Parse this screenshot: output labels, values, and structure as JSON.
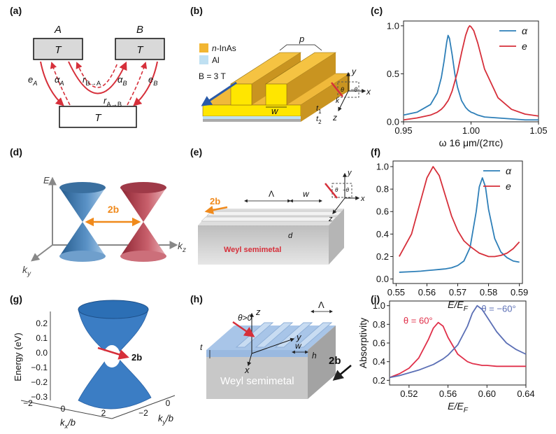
{
  "panel_labels": [
    "(a)",
    "(b)",
    "(c)",
    "(d)",
    "(e)",
    "(f)",
    "(g)",
    "(h)",
    "(i)"
  ],
  "diagram_a": {
    "reservoirs": [
      "A",
      "B"
    ],
    "boxes": [
      "T",
      "T",
      "T"
    ],
    "e_A": [
      "e",
      "A"
    ],
    "alpha_A": [
      "α",
      "A"
    ],
    "r_BA": [
      "r",
      "B→A"
    ],
    "r_AB": [
      "r",
      "A→B"
    ],
    "alpha_B": [
      "α",
      "B"
    ],
    "e_B": [
      "e",
      "B"
    ]
  },
  "diagram_b": {
    "legend": [
      [
        "n",
        "-InAs"
      ],
      "Al"
    ],
    "field": "B = 3 T",
    "p": "p",
    "w": "w",
    "t1": [
      "t",
      "1"
    ],
    "t2": [
      "t",
      "2"
    ],
    "axes": [
      "x",
      "y",
      "z"
    ],
    "theta": "θ",
    "neg_theta": "−θ",
    "k": "k"
  },
  "diagram_d": {
    "energy": "E",
    "ky": [
      "k",
      "y"
    ],
    "kz": [
      "k",
      "z"
    ],
    "separation": [
      "2",
      "b"
    ]
  },
  "diagram_e": {
    "separation": [
      "2",
      "b"
    ],
    "period": "Λ",
    "width": "w",
    "depth": "d",
    "material": "Weyl semimetal",
    "axes": [
      "x",
      "y",
      "z"
    ],
    "theta": "θ",
    "neg_theta": "−θ"
  },
  "diagram_g": {
    "ylabel": "Energy (eV)",
    "yticks": [
      "0.2",
      "0.1",
      "0.0",
      "−0.1",
      "−0.2",
      "−0.3"
    ],
    "kx_ticks": [
      "−2",
      "0",
      "2"
    ],
    "ky_ticks": [
      "−2",
      "0"
    ],
    "kx": [
      "k",
      "x",
      "/b"
    ],
    "ky": [
      "k",
      "y",
      "/b"
    ],
    "separation": [
      "2",
      "b"
    ]
  },
  "diagram_h": {
    "z": "z",
    "x": "x",
    "y": "y",
    "theta": "θ>0",
    "period": "Λ",
    "width": "w",
    "height": "h",
    "thickness": "t",
    "material": "Weyl semimetal",
    "separation": [
      "2",
      "b"
    ]
  },
  "chart_data": [
    {
      "type": "line",
      "xlabel": "ω 16 μm/(2πc)",
      "legend": "upper right",
      "xlim": [
        0.95,
        1.05
      ],
      "xticks": [
        0.95,
        {
          "value": 1,
          "label": "1.00"
        },
        1.05
      ],
      "ylim": [
        0,
        1.05
      ],
      "yticks": [
        {
          "value": 0,
          "label": "0.0"
        },
        0.5,
        {
          "value": 1,
          "label": "1.0"
        }
      ],
      "x": [
        0.95,
        0.96,
        0.97,
        0.975,
        0.978,
        0.98,
        0.982,
        0.983,
        0.984,
        0.986,
        0.988,
        0.99,
        0.993,
        0.996,
        0.998,
        0.999,
        1.0,
        1.002,
        1.005,
        1.01,
        1.02,
        1.03,
        1.04,
        1.05
      ],
      "series": [
        {
          "name": "α",
          "color": "#2e7fb8",
          "values": [
            0.07,
            0.1,
            0.18,
            0.3,
            0.46,
            0.63,
            0.83,
            0.9,
            0.87,
            0.7,
            0.5,
            0.36,
            0.22,
            0.15,
            0.12,
            0.11,
            0.1,
            0.09,
            0.07,
            0.05,
            0.04,
            0.03,
            0.02,
            0.02
          ]
        },
        {
          "name": "e",
          "color": "#d62f3a",
          "values": [
            0.02,
            0.04,
            0.07,
            0.1,
            0.13,
            0.16,
            0.2,
            0.22,
            0.25,
            0.32,
            0.42,
            0.52,
            0.72,
            0.9,
            0.98,
            1.0,
            0.99,
            0.95,
            0.82,
            0.55,
            0.25,
            0.13,
            0.08,
            0.06
          ]
        }
      ]
    },
    {
      "type": "line",
      "xlabel": [
        "E/E",
        "F"
      ],
      "legend": "upper right",
      "xlim": [
        0.549,
        0.591
      ],
      "xticks": [
        0.55,
        0.56,
        0.57,
        0.58,
        0.59
      ],
      "ylim": [
        -0.04,
        1.05
      ],
      "yticks": [
        {
          "value": 0,
          "label": "0.0"
        },
        0.2,
        0.4,
        0.6,
        0.8,
        {
          "value": 1,
          "label": "1.0"
        }
      ],
      "x": [
        0.551,
        0.555,
        0.558,
        0.56,
        0.562,
        0.564,
        0.566,
        0.568,
        0.57,
        0.572,
        0.574,
        0.576,
        0.577,
        0.578,
        0.579,
        0.58,
        0.582,
        0.584,
        0.586,
        0.588,
        0.59
      ],
      "series": [
        {
          "name": "α",
          "color": "#2e7fb8",
          "values": [
            0.06,
            0.065,
            0.07,
            0.075,
            0.08,
            0.085,
            0.09,
            0.1,
            0.12,
            0.16,
            0.28,
            0.6,
            0.82,
            0.9,
            0.82,
            0.62,
            0.36,
            0.24,
            0.19,
            0.16,
            0.15
          ]
        },
        {
          "name": "e",
          "color": "#d62f3a",
          "values": [
            0.2,
            0.4,
            0.7,
            0.9,
            1.0,
            0.92,
            0.74,
            0.56,
            0.43,
            0.34,
            0.29,
            0.25,
            0.23,
            0.22,
            0.21,
            0.2,
            0.2,
            0.21,
            0.23,
            0.27,
            0.33
          ]
        }
      ]
    },
    {
      "type": "line",
      "xlabel": [
        "E/E",
        "F"
      ],
      "ylabel": "Absorptivity",
      "legend": "inline",
      "xlim": [
        0.5,
        0.64
      ],
      "xticks": [
        0.52,
        0.56,
        {
          "value": 0.6,
          "label": "0.60"
        },
        0.64
      ],
      "ylim": [
        0.15,
        1.05
      ],
      "yticks": [
        0.2,
        0.4,
        0.6,
        0.8,
        {
          "value": 1,
          "label": "1.0"
        }
      ],
      "x": [
        0.5,
        0.51,
        0.52,
        0.53,
        0.54,
        0.545,
        0.55,
        0.555,
        0.56,
        0.57,
        0.58,
        0.585,
        0.59,
        0.595,
        0.6,
        0.61,
        0.62,
        0.63,
        0.64
      ],
      "series": [
        {
          "name": "θ = 60°",
          "color": "#e0304a",
          "values": [
            0.23,
            0.27,
            0.33,
            0.44,
            0.64,
            0.76,
            0.82,
            0.78,
            0.66,
            0.48,
            0.4,
            0.38,
            0.37,
            0.36,
            0.36,
            0.35,
            0.35,
            0.35,
            0.35
          ]
        },
        {
          "name": "θ = −60°",
          "color": "#5b6fb5",
          "values": [
            0.23,
            0.25,
            0.28,
            0.31,
            0.35,
            0.37,
            0.4,
            0.43,
            0.47,
            0.58,
            0.78,
            0.92,
            1.0,
            0.96,
            0.88,
            0.72,
            0.6,
            0.53,
            0.48
          ]
        }
      ]
    }
  ]
}
